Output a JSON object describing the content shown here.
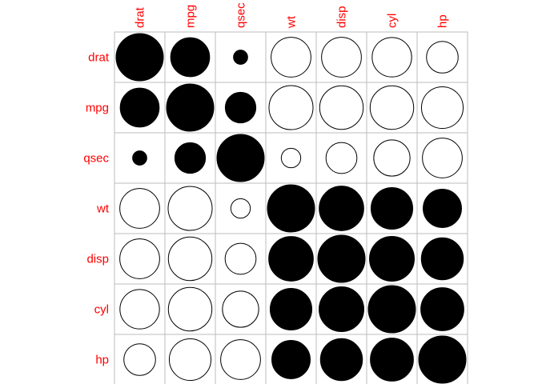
{
  "chart_data": {
    "type": "heatmap",
    "title": "",
    "variables": [
      "drat",
      "mpg",
      "qsec",
      "wt",
      "disp",
      "cyl",
      "hp"
    ],
    "matrix": [
      [
        1.0,
        0.68,
        0.09,
        -0.71,
        -0.71,
        -0.7,
        -0.45
      ],
      [
        0.68,
        1.0,
        0.42,
        -0.87,
        -0.85,
        -0.85,
        -0.78
      ],
      [
        0.09,
        0.42,
        1.0,
        -0.17,
        -0.43,
        -0.59,
        -0.71
      ],
      [
        -0.71,
        -0.87,
        -0.17,
        1.0,
        0.89,
        0.78,
        0.66
      ],
      [
        -0.71,
        -0.85,
        -0.43,
        0.89,
        1.0,
        0.9,
        0.79
      ],
      [
        -0.7,
        -0.85,
        -0.59,
        0.78,
        0.9,
        1.0,
        0.83
      ],
      [
        -0.45,
        -0.78,
        -0.71,
        0.66,
        0.79,
        0.83,
        1.0
      ]
    ],
    "encoding": "circle area proportional to |r|; filled black for positive, white with black outline for negative",
    "grid": true,
    "label_color": "#ff0000",
    "colors": {
      "positive": "#000000",
      "negative": "#ffffff",
      "outline": "#000000",
      "grid": "#bebebe"
    }
  }
}
